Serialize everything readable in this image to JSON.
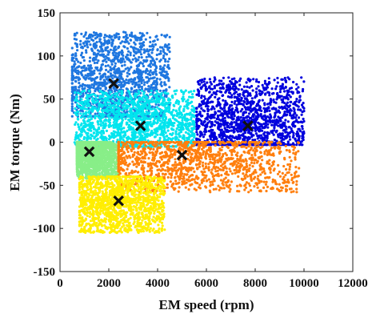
{
  "chart_data": {
    "type": "scatter",
    "title": "",
    "xlabel": "EM speed (rpm)",
    "ylabel": "EM torque (Nm)",
    "xlim": [
      0,
      12000
    ],
    "ylim": [
      -150,
      150
    ],
    "xticks": [
      0,
      2000,
      4000,
      6000,
      8000,
      10000,
      12000
    ],
    "yticks": [
      -150,
      -100,
      -50,
      0,
      50,
      100,
      150
    ],
    "grid": false,
    "legend": "none",
    "clusters": [
      {
        "color": "#1f77e0",
        "centroid": [
          2200,
          68
        ],
        "region": {
          "x": [
            500,
            4500
          ],
          "y": [
            30,
            128
          ]
        }
      },
      {
        "color": "#00e5ee",
        "centroid": [
          3300,
          19
        ],
        "region": {
          "x": [
            600,
            5500
          ],
          "y": [
            -5,
            60
          ]
        }
      },
      {
        "color": "#0000dd",
        "centroid": [
          7700,
          19
        ],
        "region": {
          "x": [
            5600,
            10000
          ],
          "y": [
            -3,
            75
          ]
        }
      },
      {
        "color": "#88ee88",
        "centroid": [
          1200,
          -11
        ],
        "region": {
          "x": [
            700,
            2400
          ],
          "y": [
            -42,
            0
          ]
        }
      },
      {
        "color": "#ff7f0e",
        "centroid": [
          5000,
          -15
        ],
        "region": {
          "x": [
            2400,
            9800
          ],
          "y": [
            -58,
            0
          ]
        }
      },
      {
        "color": "#ffee00",
        "centroid": [
          2400,
          -68
        ],
        "region": {
          "x": [
            800,
            4300
          ],
          "y": [
            -105,
            -40
          ]
        }
      }
    ]
  }
}
